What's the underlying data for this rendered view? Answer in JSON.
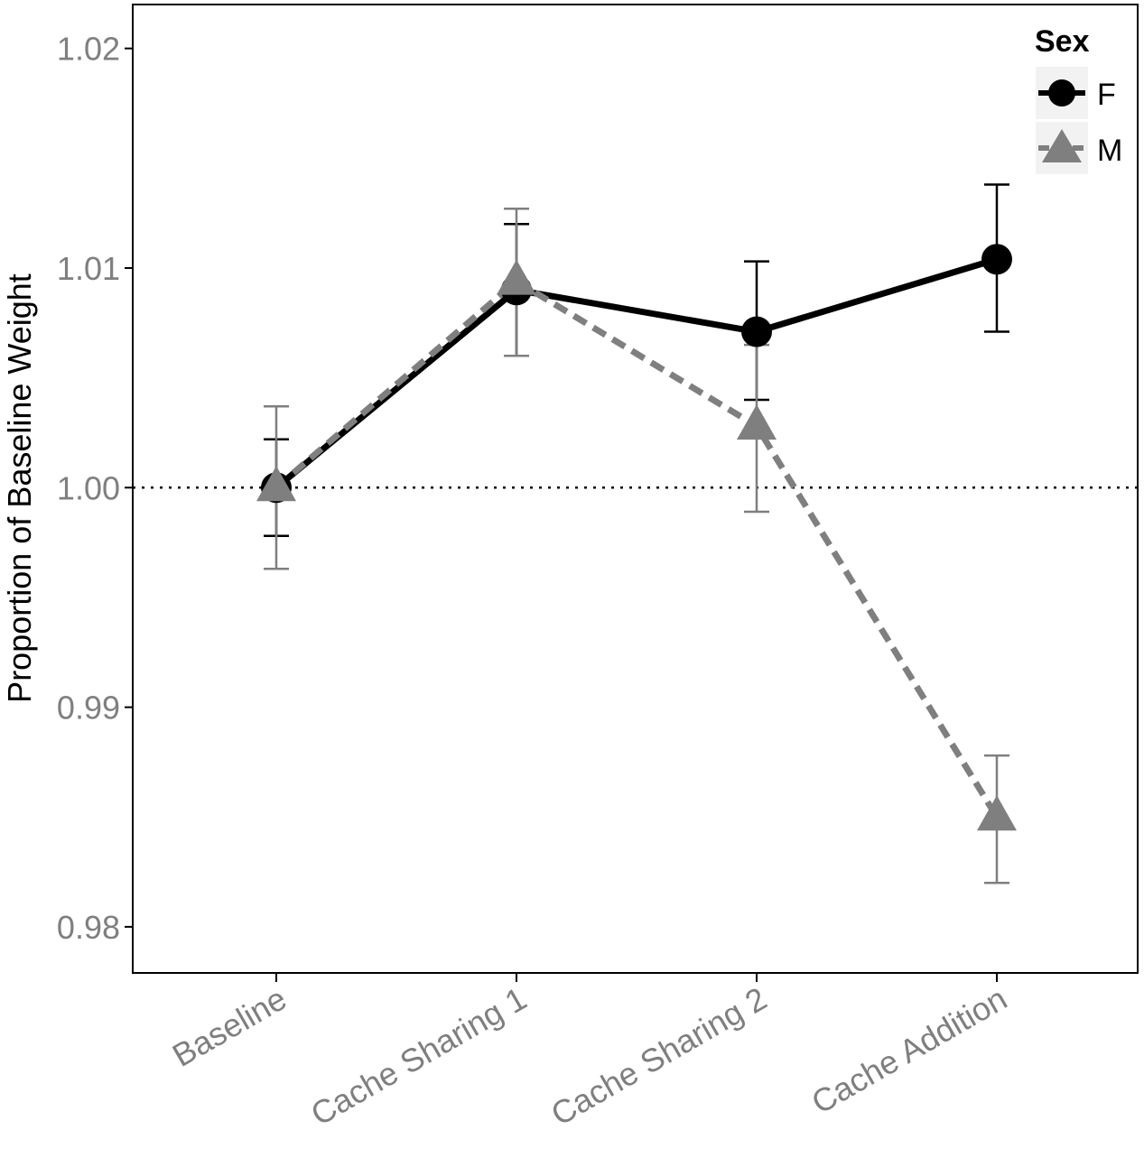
{
  "chart_data": {
    "type": "line",
    "title": "",
    "xlabel": "",
    "ylabel": "Proportion of Baseline Weight",
    "categories": [
      "Baseline",
      "Cache Sharing 1",
      "Cache Sharing 2",
      "Cache Addition"
    ],
    "ylim": [
      0.9779,
      1.022
    ],
    "yticks": [
      0.98,
      0.99,
      1.0,
      1.01,
      1.02
    ],
    "ytick_labels": [
      "0.98",
      "0.99",
      "1.00",
      "1.01",
      "1.02"
    ],
    "reference_line": 1.0,
    "grid": false,
    "legend": {
      "title": "Sex",
      "position": "top-right",
      "entries": [
        "F",
        "M"
      ]
    },
    "series": [
      {
        "name": "F",
        "color": "#000000",
        "line_style": "solid",
        "marker": "circle",
        "values": [
          1.0,
          1.009,
          1.0071,
          1.0104
        ],
        "error_low": [
          0.9978,
          1.006,
          1.004,
          1.0071
        ],
        "error_high": [
          1.0022,
          1.012,
          1.0103,
          1.0138
        ]
      },
      {
        "name": "M",
        "color": "#7f7f7f",
        "line_style": "dashed",
        "marker": "triangle",
        "values": [
          1.0,
          1.0094,
          1.0028,
          0.985
        ],
        "error_low": [
          0.9963,
          1.006,
          0.9989,
          0.982
        ],
        "error_high": [
          1.0037,
          1.0127,
          1.0065,
          0.9878
        ]
      }
    ]
  }
}
